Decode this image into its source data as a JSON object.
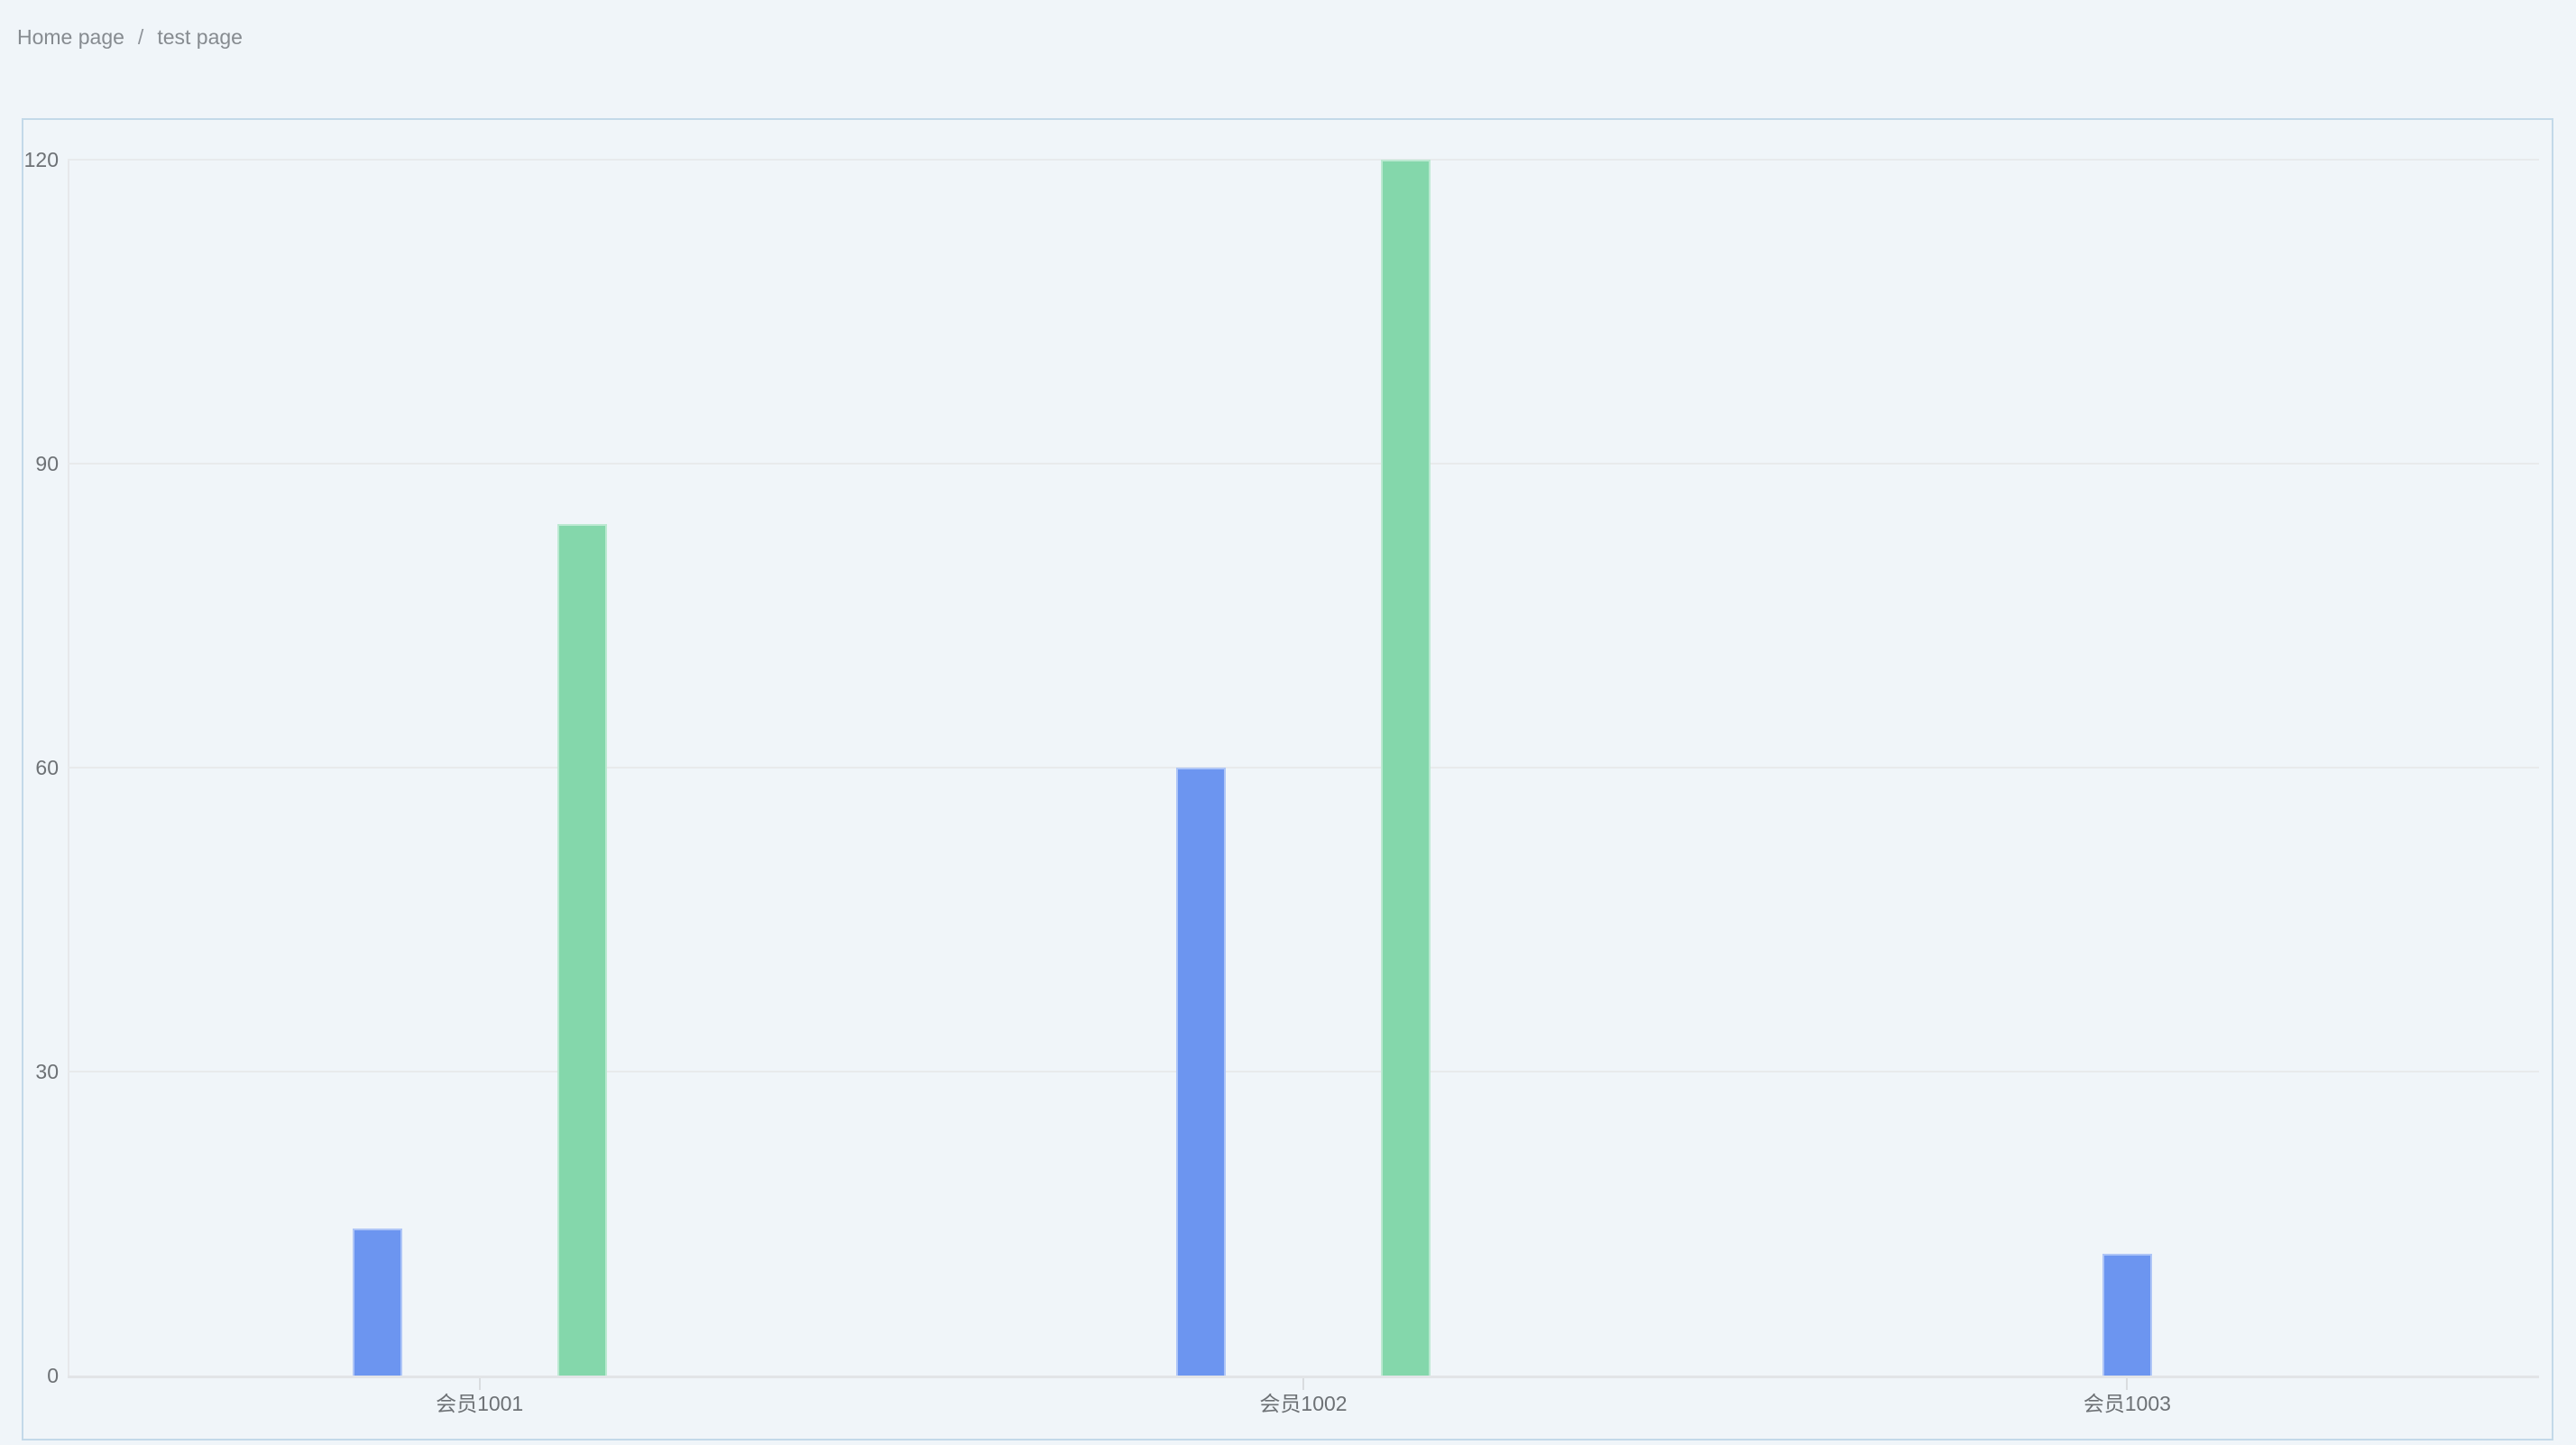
{
  "breadcrumb": {
    "items": [
      {
        "label": "Home page"
      },
      {
        "label": "test page"
      }
    ],
    "separator": "/"
  },
  "chart_data": {
    "type": "bar",
    "title": "",
    "xlabel": "",
    "ylabel": "",
    "categories": [
      "会员1001",
      "会员1002",
      "会员1003"
    ],
    "series": [
      {
        "name": "blue",
        "color": "#6c95f0",
        "values": [
          14.5,
          60,
          12
        ]
      },
      {
        "name": "green",
        "color": "#84d7ab",
        "values": [
          84,
          120,
          null
        ]
      }
    ],
    "ylim": [
      0,
      120
    ],
    "yticks": [
      0,
      30,
      60,
      90,
      120
    ],
    "grid": true,
    "legend_position": "none"
  },
  "colors": {
    "page_background": "#f0f5f9",
    "card_border": "#c3d9e9",
    "gridline": "#e8eaec",
    "axis_line": "#e2e4e7",
    "axis_label_text": "#6d7175",
    "breadcrumb_text": "#868b90",
    "bar_blue": "#6c95f0",
    "bar_green": "#84d7ab"
  }
}
